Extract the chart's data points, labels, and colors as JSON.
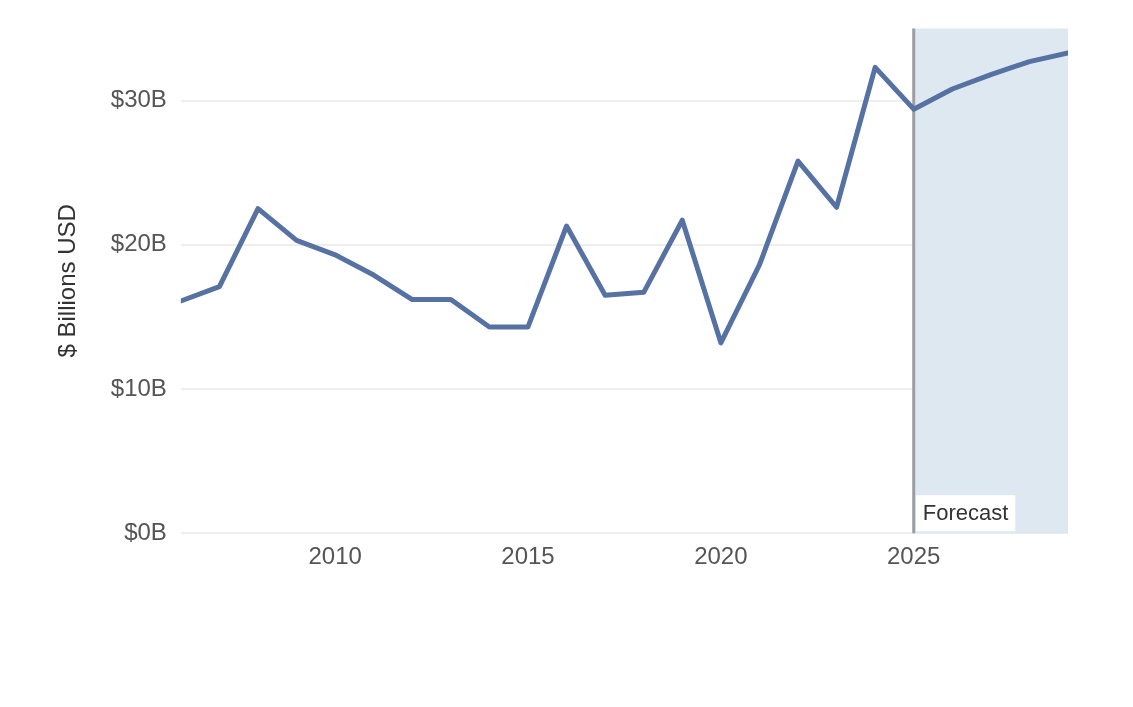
{
  "chart_data": {
    "type": "line",
    "ylabel": "$ Billions USD",
    "x": [
      2006,
      2007,
      2008,
      2009,
      2010,
      2011,
      2012,
      2013,
      2014,
      2015,
      2016,
      2017,
      2018,
      2019,
      2020,
      2021,
      2022,
      2023,
      2024,
      2025,
      2026,
      2027,
      2028,
      2029
    ],
    "series": [
      {
        "color": "#5672a3",
        "values": [
          16.1,
          17.1,
          22.5,
          20.3,
          19.3,
          17.9,
          16.2,
          16.2,
          14.3,
          14.3,
          21.3,
          16.5,
          16.7,
          21.7,
          13.2,
          18.6,
          25.8,
          22.6,
          32.3,
          29.4,
          30.8,
          31.8,
          32.7,
          33.3
        ]
      }
    ],
    "xlim": [
      2006,
      2029
    ],
    "xticks": [
      2010,
      2015,
      2020,
      2025
    ],
    "ylim": [
      0,
      35
    ],
    "yticks": [
      {
        "value": 0,
        "label": "$0B"
      },
      {
        "value": 10,
        "label": "$10B"
      },
      {
        "value": 20,
        "label": "$20B"
      },
      {
        "value": 30,
        "label": "$30B"
      }
    ],
    "grid": "y",
    "legend": false,
    "marker": "none",
    "line_style": "solid",
    "bands": [
      {
        "axis": "x",
        "from": 2025,
        "to": 2029,
        "label": "Forecast",
        "color": "#dde8f0"
      }
    ],
    "ref_lines": [
      {
        "axis": "x",
        "value": 2025,
        "color": "#9a9ea3"
      }
    ]
  }
}
